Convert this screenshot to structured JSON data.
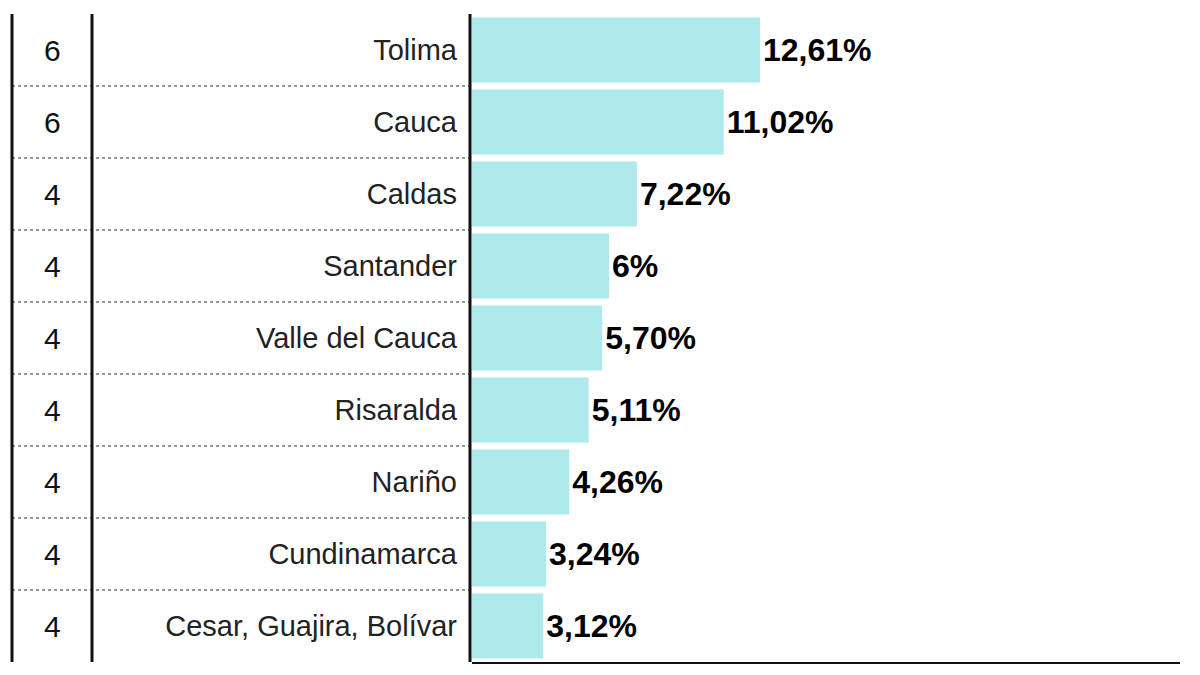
{
  "chart_data": {
    "type": "bar",
    "orientation": "horizontal",
    "categories": [
      "Tolima",
      "Cauca",
      "Caldas",
      "Santander",
      "Valle del Cauca",
      "Risaralda",
      "Nariño",
      "Cundinamarca",
      "Cesar, Guajira, Bolívar"
    ],
    "values": [
      12.61,
      11.02,
      7.22,
      6,
      5.7,
      5.11,
      4.26,
      3.24,
      3.12
    ],
    "value_labels": [
      "12,61%",
      "11,02%",
      "7,22%",
      "6%",
      "5,70%",
      "5,11%",
      "4,26%",
      "3,24%",
      "3,12%"
    ],
    "row_values": [
      6,
      6,
      4,
      4,
      4,
      4,
      4,
      4,
      4
    ],
    "color": "#aee9ec",
    "xlim": [
      0,
      31
    ],
    "xticks": [],
    "data_labels": true,
    "tick_labels": "y",
    "grid": false
  }
}
